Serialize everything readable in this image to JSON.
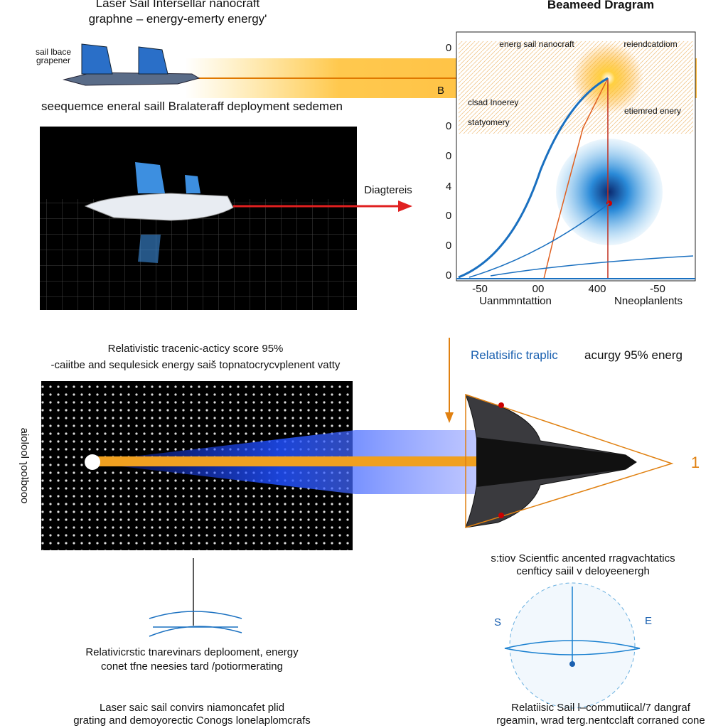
{
  "header": {
    "title": "Laser Sail Intersellar nanocraft",
    "subtitle": "graphne – energy-emerty energy'",
    "ship_labels": [
      "sail lbace",
      "grapener"
    ],
    "diagram_title": "Beameed Dragram"
  },
  "left_top": {
    "caption": "seequemce eneral saill Bralateraff deployment sedemen",
    "arrow_label": "Diagtereis"
  },
  "chart_panel": {
    "y_labels": [
      "0",
      "B",
      "0",
      "0",
      "4",
      "0",
      "0",
      "0"
    ],
    "x_labels": [
      "-50",
      "00",
      "400",
      "-50"
    ],
    "x_axis_labels": [
      "Uanmmntattion",
      "Nneoplanlents"
    ],
    "legend": [
      "energ sail nanocraft",
      "reiendcatdiom"
    ],
    "notes": [
      "clsad Inoerey",
      "statyomery"
    ],
    "right_note": "etiemred enery"
  },
  "middle": {
    "left_title": "Relativistic tracenic-acticy score 95%",
    "left_subtitle": "-caiitbe and sequlesick energy saiš topnatocrycvplenent vatty",
    "right_title_blue": "Relatisific traplic",
    "right_title_rest": "acurgy  95%  energ",
    "side_label": "aiolool ɿooʇbooo",
    "marker": "1"
  },
  "bottom": {
    "right_caption": [
      "s:tiov  Scientfic ancented rragvachtatics",
      "cenfticy saiil v deloyeenergh"
    ],
    "compass": [
      "S",
      "E"
    ],
    "left_caption": [
      "Relativicrstic tnarevinars deplooment, energy",
      "conet tfne neesies tard /potiormerating"
    ],
    "footer_left": [
      "Laser saic  sail convirs niamoncafet plid",
      "grating and demoyorectic Conogs lonelaplomcrafs"
    ],
    "footer_right": [
      "Relatiisic Sail l–commutiical/7 dangraf",
      "rgeamin, wrad terg.nentcclaft corraned cone"
    ]
  }
}
